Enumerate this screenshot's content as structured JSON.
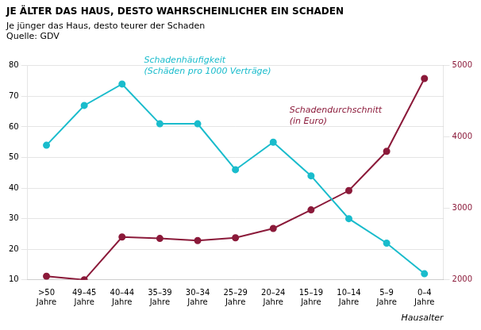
{
  "chart_data": {
    "type": "line",
    "title": "JE ÄLTER DAS HAUS, DESTO WAHRSCHEINLICHER EIN SCHADEN",
    "subtitle": "Je jünger das Haus, desto teurer der Schaden",
    "source": "Quelle: GDV",
    "xlabel": "Hausalter",
    "categories": [
      ">50\nJahre",
      "49–45\nJahre",
      "40–44\nJahre",
      "35–39\nJahre",
      "30–34\nJahre",
      "25–29\nJahre",
      "20–24\nJahre",
      "15–19\nJahre",
      "10–14\nJahre",
      "5–9\nJahre",
      "0–4\nJahre"
    ],
    "series": [
      {
        "name": "Schadenhäufigkeit\n(Schäden pro 1000 Verträge)",
        "color": "#1abccc",
        "marker": "circle",
        "values": [
          54,
          67,
          74,
          61,
          61,
          46,
          55,
          44,
          30,
          22,
          12
        ]
      },
      {
        "name": "Schadendurchschnitt\n(in Euro)",
        "color": "#8b1a3a",
        "marker": "circle",
        "axis": "y2",
        "values": [
          2050,
          2000,
          2600,
          2580,
          2550,
          2590,
          2720,
          2980,
          3250,
          3800,
          4820
        ]
      }
    ],
    "ylim": [
      10,
      80
    ],
    "yticks": [
      10,
      20,
      30,
      40,
      50,
      60,
      70,
      80
    ],
    "y2lim": [
      2000,
      5000
    ],
    "y2ticks": [
      2000,
      3000,
      4000,
      5000
    ],
    "grid": true
  }
}
